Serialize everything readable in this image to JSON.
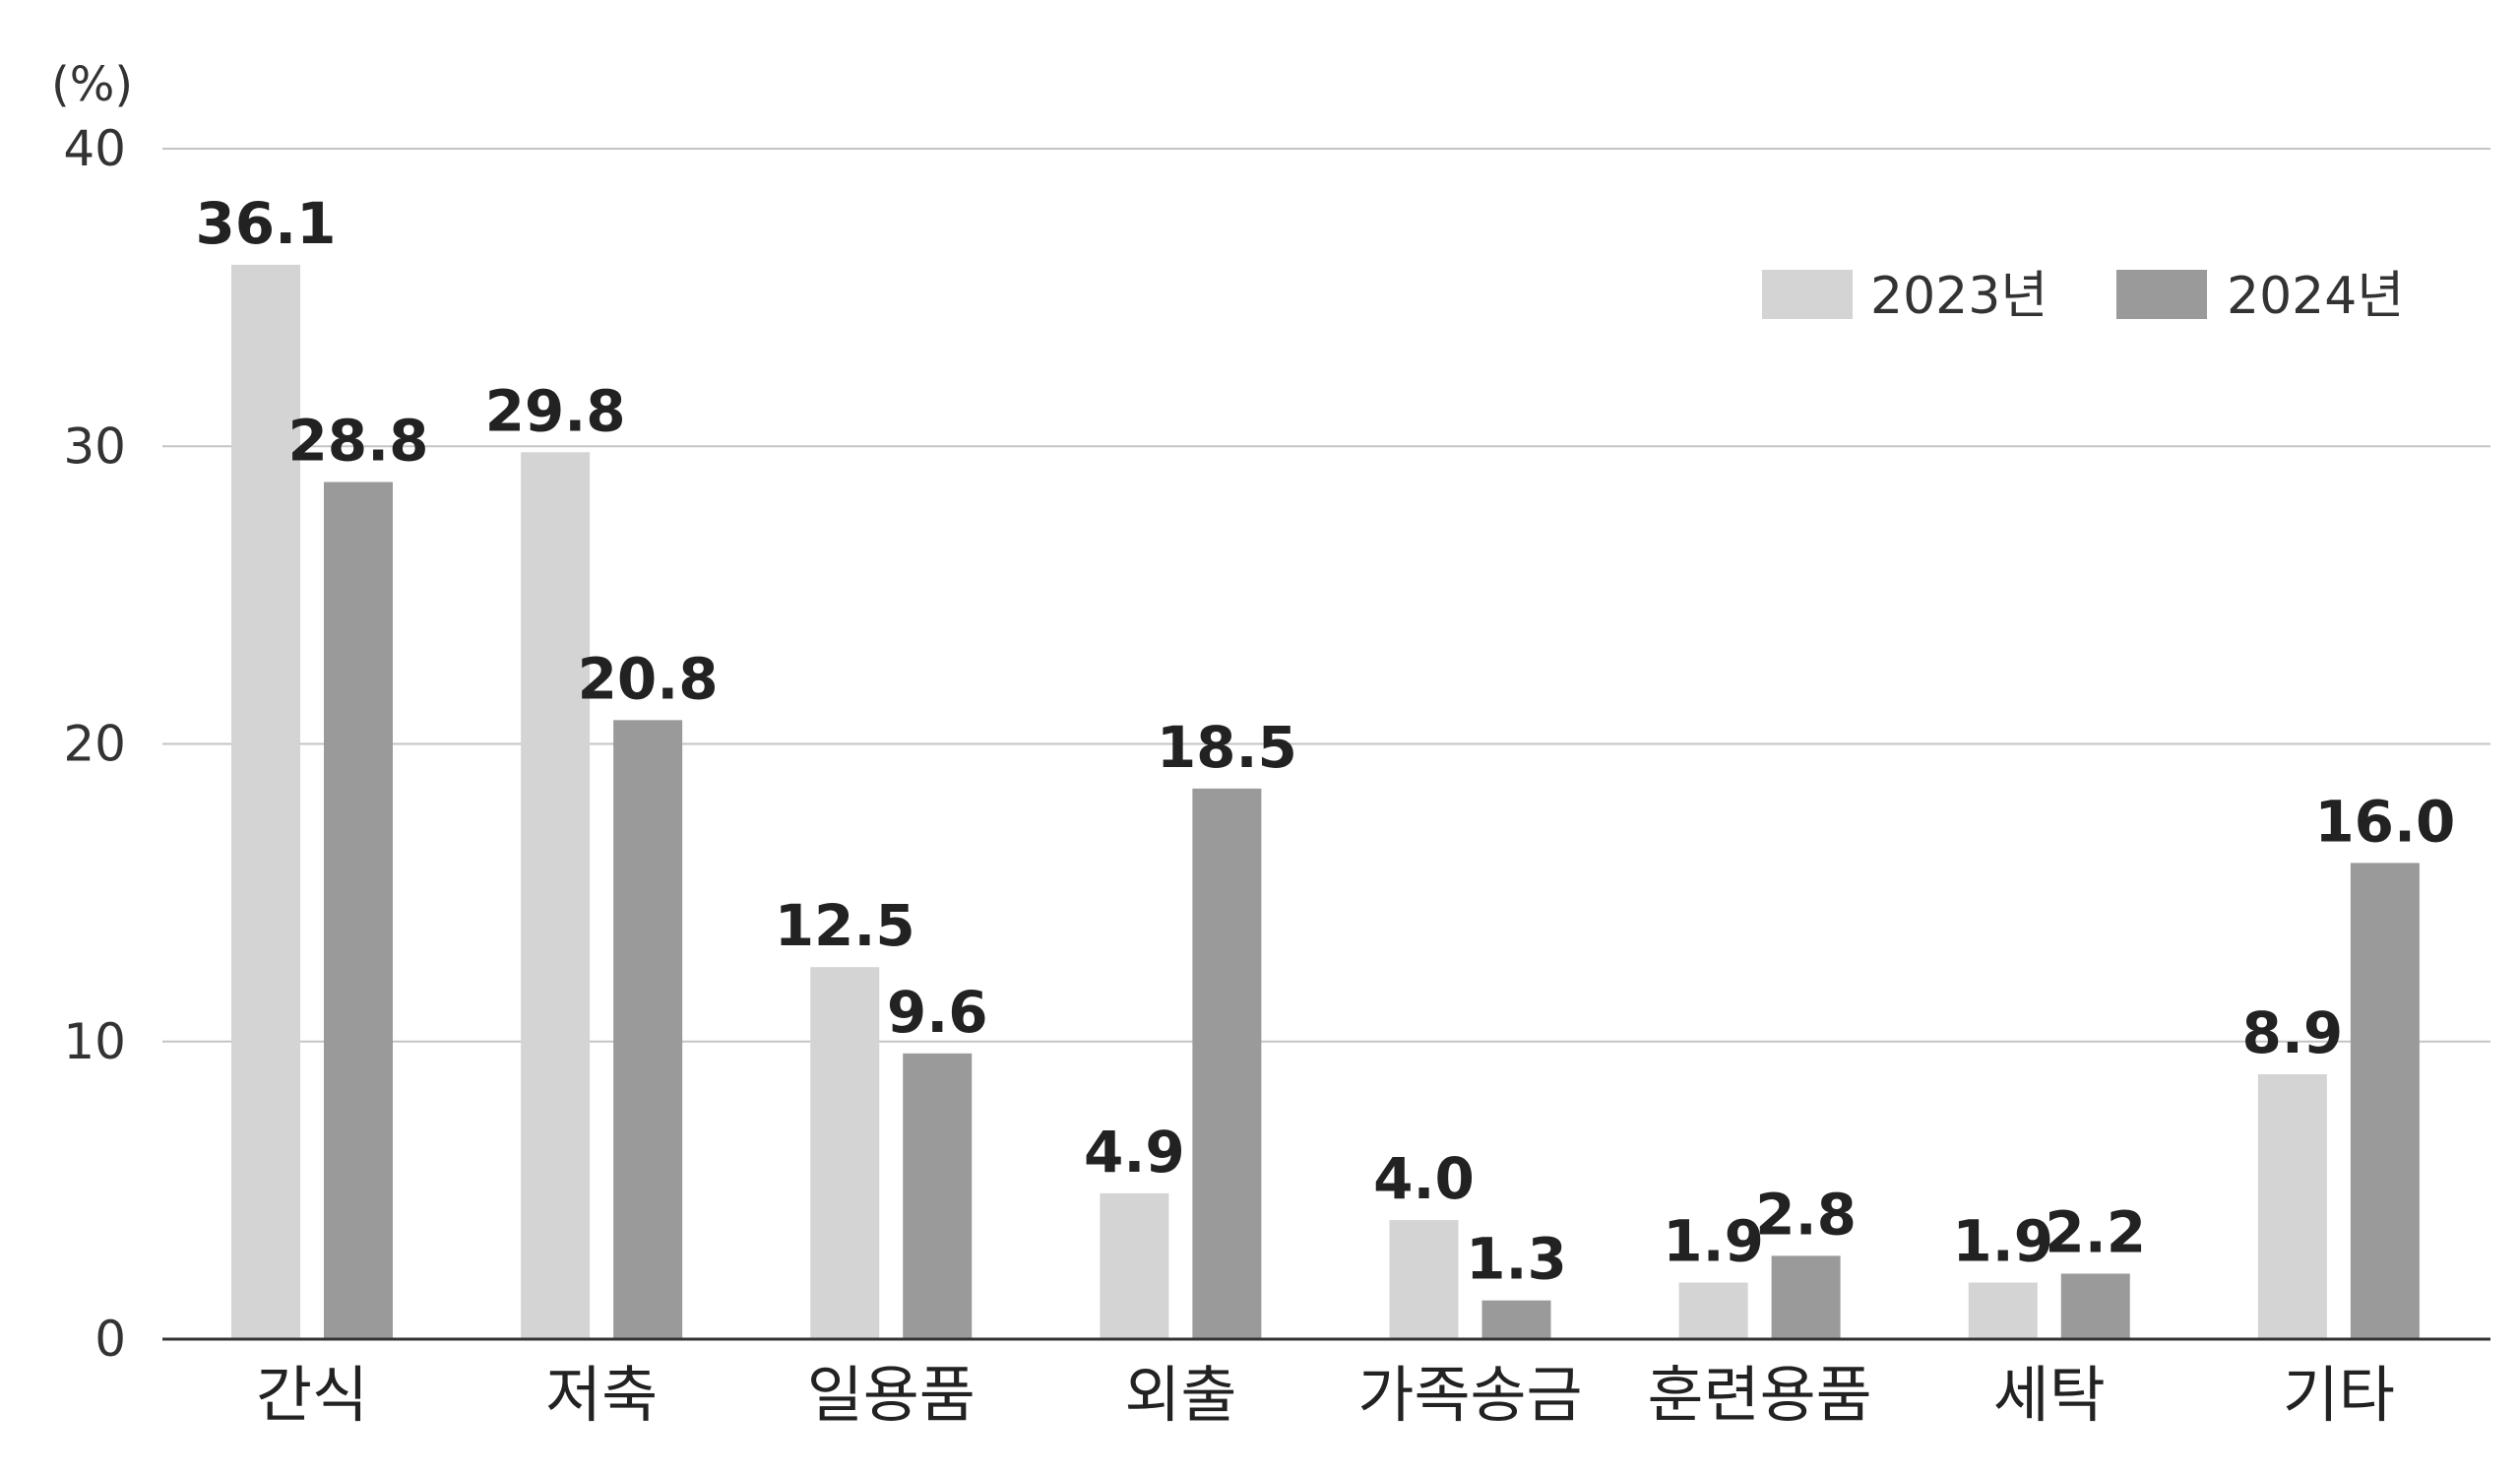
{
  "chart_data": {
    "type": "bar",
    "title": "",
    "xlabel": "",
    "ylabel": "(%)",
    "ylim": [
      0,
      40
    ],
    "yticks": [
      0,
      10,
      20,
      30,
      40
    ],
    "grid": true,
    "legend_position": "top-right",
    "categories": [
      "간식",
      "저축",
      "일용품",
      "외출",
      "가족송금",
      "훈련용품",
      "세탁",
      "기타"
    ],
    "series": [
      {
        "name": "2023년",
        "color": "#d4d4d4",
        "values": [
          36.1,
          29.8,
          12.5,
          4.9,
          4.0,
          1.9,
          1.9,
          8.9
        ],
        "labels": [
          "36.1",
          "29.8",
          "12.5",
          "4.9",
          "4.0",
          "1.9",
          "1.9",
          "8.9"
        ]
      },
      {
        "name": "2024년",
        "color": "#999a99",
        "values": [
          28.8,
          20.8,
          9.6,
          18.5,
          1.3,
          2.8,
          2.2,
          16.0
        ],
        "labels": [
          "28.8",
          "20.8",
          "9.6",
          "18.5",
          "1.3",
          "2.8",
          "2.2",
          "16.0"
        ]
      }
    ]
  }
}
